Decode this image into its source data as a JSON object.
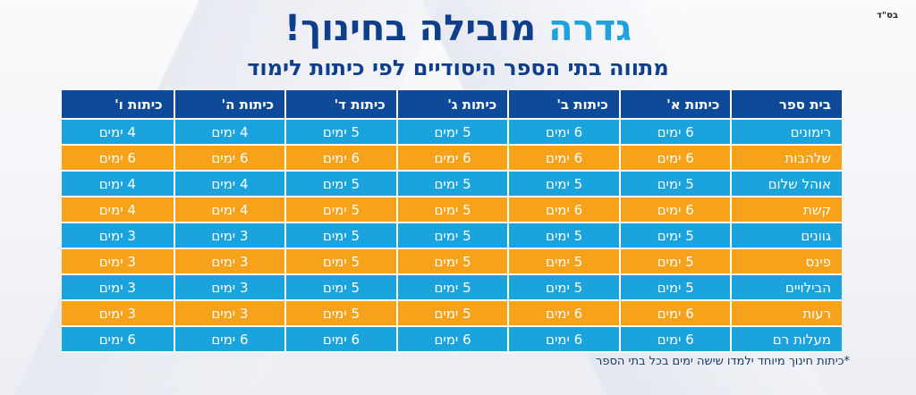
{
  "corner_note": "בס\"ד",
  "headline": {
    "accent": "גדרה",
    "main": "מובילה בחינוך!"
  },
  "subtitle": "מתווה בתי הספר היסודיים לפי כיתות לימוד",
  "table": {
    "headers": [
      "בית ספר",
      "כיתות א'",
      "כיתות ב'",
      "כיתות ג'",
      "כיתות ד'",
      "כיתות ה'",
      "כיתות ו'"
    ],
    "rows": [
      [
        "רימונים",
        "6 ימים",
        "6 ימים",
        "5 ימים",
        "5 ימים",
        "4 ימים",
        "4 ימים"
      ],
      [
        "שלהבות",
        "6 ימים",
        "6 ימים",
        "6 ימים",
        "6 ימים",
        "6 ימים",
        "6 ימים"
      ],
      [
        "אוהל שלום",
        "5 ימים",
        "5 ימים",
        "5 ימים",
        "5 ימים",
        "4 ימים",
        "4 ימים"
      ],
      [
        "קשת",
        "6 ימים",
        "6 ימים",
        "5 ימים",
        "5 ימים",
        "4 ימים",
        "4 ימים"
      ],
      [
        "גוונים",
        "5 ימים",
        "5 ימים",
        "5 ימים",
        "5 ימים",
        "3 ימים",
        "3 ימים"
      ],
      [
        "פינס",
        "5 ימים",
        "5 ימים",
        "5 ימים",
        "5 ימים",
        "3 ימים",
        "3 ימים"
      ],
      [
        "הבילויים",
        "5 ימים",
        "5 ימים",
        "5 ימים",
        "5 ימים",
        "3 ימים",
        "3 ימים"
      ],
      [
        "רעות",
        "6 ימים",
        "6 ימים",
        "5 ימים",
        "5 ימים",
        "3 ימים",
        "3 ימים"
      ],
      [
        "מעלות רם",
        "6 ימים",
        "6 ימים",
        "6 ימים",
        "6 ימים",
        "6 ימים",
        "6 ימים"
      ]
    ]
  },
  "footnote": "*כיתות חינוך מיוחד ילמדו שישה ימים בכל בתי הספר",
  "colors": {
    "header": "#0f4a98",
    "row_blue": "#1ba3de",
    "row_orange": "#f7a21b",
    "accent": "#1ea2dd",
    "title": "#0e3e8c"
  }
}
